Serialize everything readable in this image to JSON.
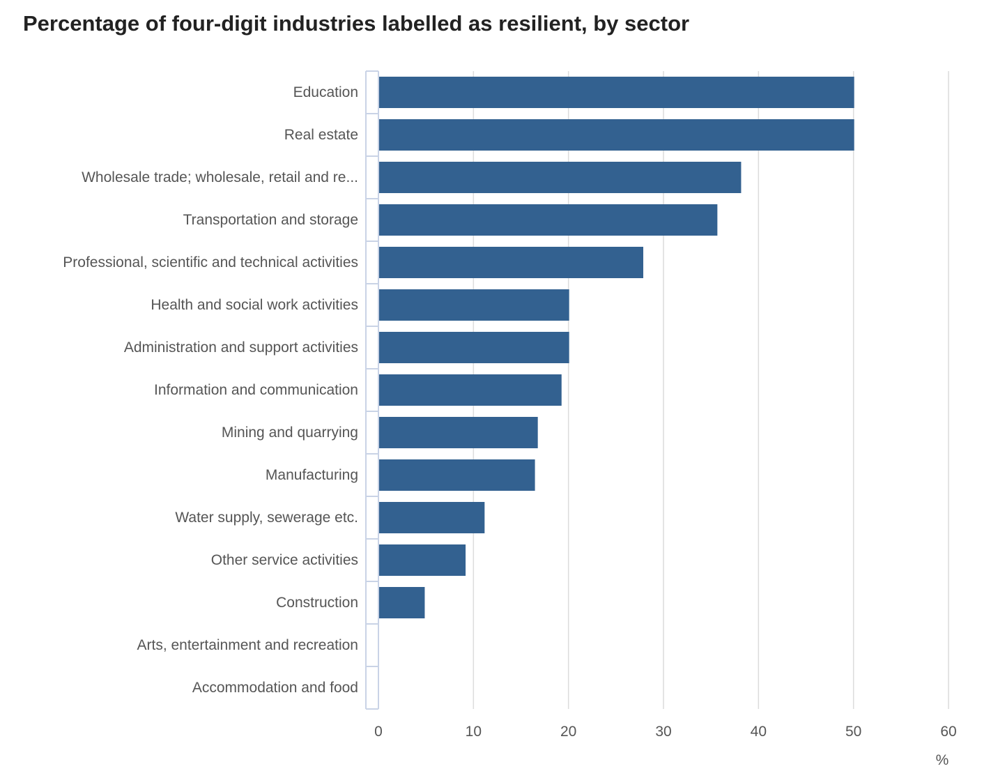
{
  "chart_data": {
    "type": "bar",
    "orientation": "horizontal",
    "title": "Percentage of four-digit industries labelled as resilient, by sector",
    "xlabel": "%",
    "ylabel": "",
    "xlim": [
      0,
      60
    ],
    "xticks": [
      0,
      10,
      20,
      30,
      40,
      50,
      60
    ],
    "grid": true,
    "legend": "none",
    "bar_color": "#336190",
    "categories": [
      "Education",
      "Real estate",
      "Wholesale trade; wholesale, retail and re...",
      "Transportation and storage",
      "Professional, scientific and technical activities",
      "Health and social work activities",
      "Administration and support activities",
      "Information and communication",
      "Mining and quarrying",
      "Manufacturing",
      "Water supply, sewerage etc.",
      "Other service activities",
      "Construction",
      "Arts, entertainment and recreation",
      "Accommodation and food"
    ],
    "values": [
      50,
      50,
      38.1,
      35.6,
      27.8,
      20,
      20,
      19.2,
      16.7,
      16.4,
      11.1,
      9.1,
      4.8,
      0,
      0
    ]
  }
}
